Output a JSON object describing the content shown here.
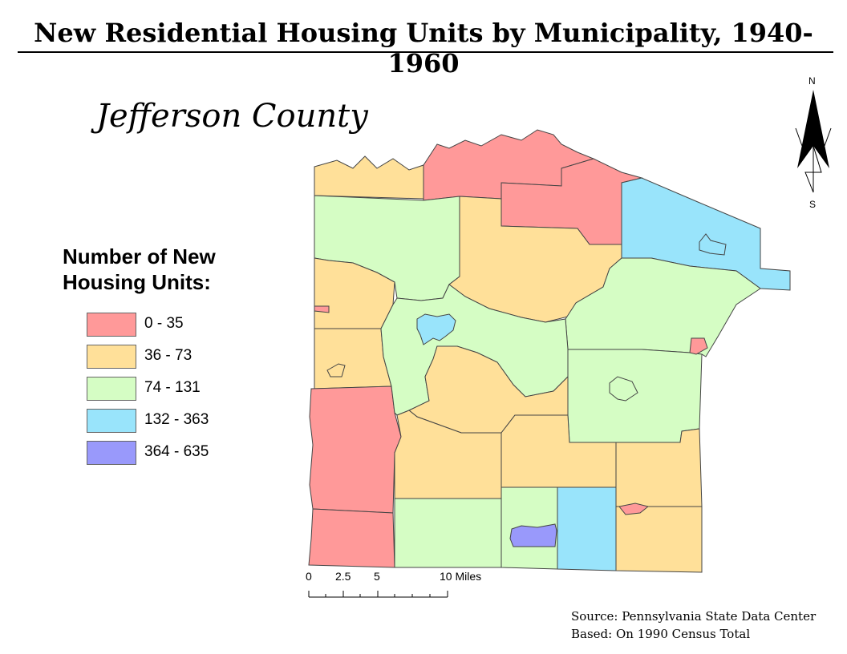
{
  "title": "New Residential Housing Units by Municipality, 1940-1960",
  "subtitle": "Jefferson County",
  "legend": {
    "title_line1": "Number of New",
    "title_line2": "Housing Units:",
    "classes": [
      {
        "label": "0 - 35",
        "color": "#ff9999"
      },
      {
        "label": "36 - 73",
        "color": "#ffe099"
      },
      {
        "label": "74 - 131",
        "color": "#d5fdc4"
      },
      {
        "label": "132 - 363",
        "color": "#99e4fb"
      },
      {
        "label": "364 - 635",
        "color": "#9999fb"
      }
    ]
  },
  "scale_bar": {
    "tick_0": "0",
    "tick_1": "2.5",
    "tick_2": "5",
    "tick_3": "10 Miles"
  },
  "north_arrow": {
    "north": "N",
    "south": "S"
  },
  "source": {
    "line1": "Source: Pennsylvania State Data Center",
    "line2": "Based: On 1990 Census Total"
  },
  "colors": {
    "class_0_35": "#ff9999",
    "class_36_73": "#ffe099",
    "class_74_131": "#d5fdc4",
    "class_132_363": "#99e4fb",
    "class_364_635": "#9999fb",
    "boundary": "#444444"
  }
}
